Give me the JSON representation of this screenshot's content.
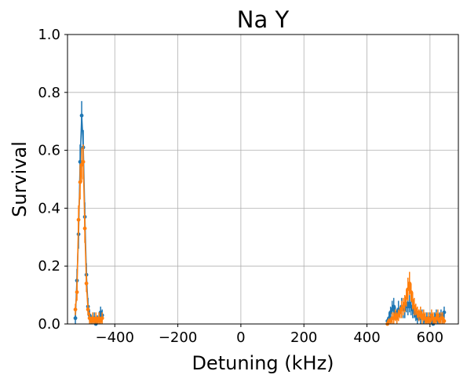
{
  "chart_data": {
    "type": "scatter",
    "title": "Na Y",
    "xlabel": "Detuning (kHz)",
    "ylabel": "Survival",
    "xlim": [
      -550,
      690
    ],
    "ylim": [
      0,
      1.0
    ],
    "xticks": [
      -400,
      -200,
      0,
      200,
      400,
      600
    ],
    "xtick_labels": [
      "−400",
      "−200",
      "0",
      "200",
      "400",
      "600"
    ],
    "yticks": [
      0.0,
      0.2,
      0.4,
      0.6,
      0.8,
      1.0
    ],
    "ytick_labels": [
      "0.0",
      "0.2",
      "0.4",
      "0.6",
      "0.8",
      "1.0"
    ],
    "grid": true,
    "legend": "none",
    "series": [
      {
        "color": "#1f77b4",
        "x": [
          -525,
          -520,
          -515,
          -510,
          -505,
          -500,
          -495,
          -490,
          -485,
          -480,
          -475,
          -470,
          -465,
          -460,
          -455,
          -450,
          -445,
          -440,
          465,
          470,
          475,
          480,
          485,
          490,
          495,
          500,
          505,
          510,
          515,
          520,
          525,
          530,
          535,
          540,
          545,
          550,
          555,
          560,
          565,
          570,
          575,
          580,
          585,
          590,
          595,
          600,
          605,
          610,
          615,
          620,
          625,
          630,
          635,
          640,
          645
        ],
        "y": [
          0.02,
          0.15,
          0.31,
          0.56,
          0.72,
          0.61,
          0.37,
          0.17,
          0.06,
          0.03,
          0.01,
          0.01,
          0.02,
          0.0,
          0.01,
          0.02,
          0.04,
          0.03,
          0.01,
          0.02,
          0.04,
          0.05,
          0.06,
          0.04,
          0.03,
          0.05,
          0.04,
          0.06,
          0.05,
          0.05,
          0.07,
          0.06,
          0.07,
          0.06,
          0.05,
          0.04,
          0.03,
          0.02,
          0.03,
          0.02,
          0.03,
          0.02,
          0.01,
          0.02,
          0.01,
          0.02,
          0.01,
          0.0,
          0.02,
          0.03,
          0.01,
          0.02,
          0.03,
          0.02,
          0.04
        ],
        "err": [
          0.02,
          0.04,
          0.05,
          0.06,
          0.05,
          0.06,
          0.05,
          0.04,
          0.03,
          0.02,
          0.02,
          0.02,
          0.02,
          0.01,
          0.02,
          0.02,
          0.02,
          0.02,
          0.01,
          0.02,
          0.02,
          0.03,
          0.03,
          0.02,
          0.02,
          0.03,
          0.02,
          0.03,
          0.03,
          0.03,
          0.03,
          0.03,
          0.03,
          0.03,
          0.03,
          0.02,
          0.02,
          0.02,
          0.02,
          0.02,
          0.02,
          0.02,
          0.01,
          0.02,
          0.01,
          0.02,
          0.01,
          0.01,
          0.02,
          0.02,
          0.01,
          0.02,
          0.02,
          0.02,
          0.02
        ]
      },
      {
        "color": "#ff7f0e",
        "x": [
          -525,
          -520,
          -515,
          -510,
          -505,
          -500,
          -495,
          -490,
          -485,
          -480,
          -475,
          -470,
          -465,
          -460,
          -455,
          -450,
          -445,
          -440,
          465,
          470,
          475,
          480,
          485,
          490,
          495,
          500,
          505,
          510,
          515,
          520,
          525,
          530,
          535,
          540,
          545,
          550,
          555,
          560,
          565,
          570,
          575,
          580,
          585,
          590,
          595,
          600,
          605,
          610,
          615,
          620,
          625,
          630,
          635,
          640,
          645
        ],
        "y": [
          0.05,
          0.11,
          0.36,
          0.49,
          0.55,
          0.56,
          0.33,
          0.14,
          0.05,
          0.02,
          0.01,
          0.02,
          0.01,
          0.02,
          0.01,
          0.02,
          0.01,
          0.02,
          0.0,
          0.01,
          0.01,
          0.02,
          0.02,
          0.03,
          0.02,
          0.03,
          0.04,
          0.05,
          0.06,
          0.07,
          0.09,
          0.12,
          0.14,
          0.11,
          0.08,
          0.06,
          0.05,
          0.04,
          0.03,
          0.04,
          0.02,
          0.03,
          0.02,
          0.01,
          0.02,
          0.01,
          0.03,
          0.02,
          0.01,
          0.02,
          0.03,
          0.01,
          0.02,
          0.02,
          0.01
        ],
        "err": [
          0.02,
          0.03,
          0.05,
          0.06,
          0.06,
          0.06,
          0.05,
          0.03,
          0.02,
          0.02,
          0.01,
          0.02,
          0.01,
          0.02,
          0.01,
          0.02,
          0.01,
          0.02,
          0.01,
          0.01,
          0.01,
          0.02,
          0.02,
          0.02,
          0.02,
          0.02,
          0.02,
          0.03,
          0.03,
          0.03,
          0.03,
          0.04,
          0.04,
          0.03,
          0.03,
          0.03,
          0.02,
          0.02,
          0.02,
          0.02,
          0.02,
          0.02,
          0.02,
          0.01,
          0.02,
          0.01,
          0.02,
          0.02,
          0.01,
          0.02,
          0.02,
          0.01,
          0.02,
          0.02,
          0.01
        ]
      }
    ]
  }
}
